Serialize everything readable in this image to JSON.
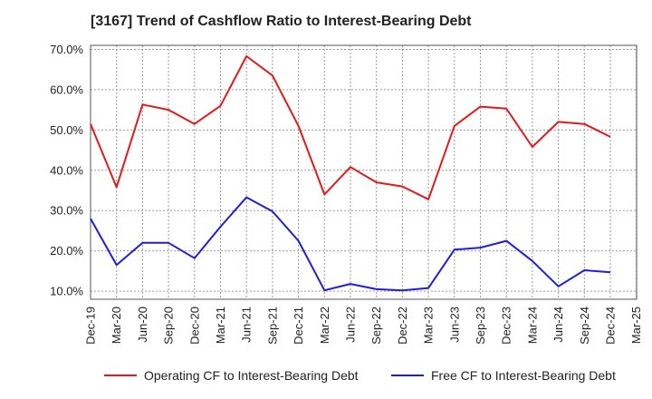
{
  "title": "[3167]  Trend of Cashflow Ratio to Interest-Bearing Debt",
  "chart_data": {
    "type": "line",
    "title": "[3167]  Trend of Cashflow Ratio to Interest-Bearing Debt",
    "xlabel": "",
    "ylabel": "",
    "categories": [
      "Dec-19",
      "Mar-20",
      "Jun-20",
      "Sep-20",
      "Dec-20",
      "Mar-21",
      "Jun-21",
      "Sep-21",
      "Dec-21",
      "Mar-22",
      "Jun-22",
      "Sep-22",
      "Dec-22",
      "Mar-23",
      "Jun-23",
      "Sep-23",
      "Dec-23",
      "Mar-24",
      "Jun-24",
      "Sep-24",
      "Dec-24",
      "Mar-25"
    ],
    "yticks": [
      "10.0%",
      "20.0%",
      "30.0%",
      "40.0%",
      "50.0%",
      "60.0%",
      "70.0%"
    ],
    "ylim": [
      8,
      71
    ],
    "grid": true,
    "legend_position": "bottom",
    "series": [
      {
        "name": "Operating CF to Interest-Bearing Debt",
        "color": "#e31a1c",
        "values": [
          51.5,
          35.8,
          56.3,
          55.0,
          51.5,
          56.0,
          68.3,
          63.5,
          51.0,
          34.0,
          40.8,
          37.0,
          36.0,
          32.8,
          51.0,
          55.8,
          55.3,
          45.8,
          52.0,
          51.5,
          48.3,
          null
        ]
      },
      {
        "name": "Free CF to Interest-Bearing Debt",
        "color": "#1f1fd6",
        "values": [
          28.0,
          16.5,
          22.0,
          22.0,
          18.2,
          26.0,
          33.3,
          29.8,
          22.5,
          10.2,
          11.8,
          10.5,
          10.2,
          10.8,
          20.3,
          20.8,
          22.5,
          17.5,
          11.2,
          15.2,
          14.7,
          null
        ]
      }
    ]
  }
}
